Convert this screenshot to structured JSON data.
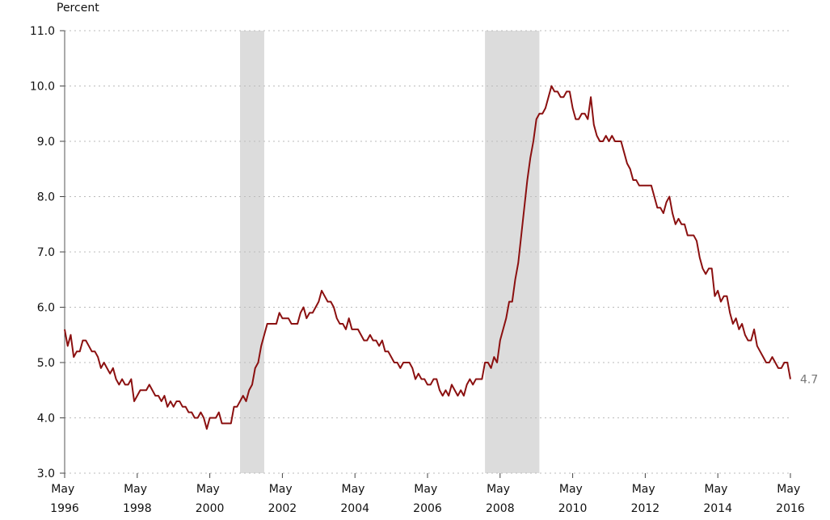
{
  "chart_data": {
    "type": "line",
    "y_label": "Percent",
    "x": [
      "1996-05",
      "1996-06",
      "1996-07",
      "1996-08",
      "1996-09",
      "1996-10",
      "1996-11",
      "1996-12",
      "1997-01",
      "1997-02",
      "1997-03",
      "1997-04",
      "1997-05",
      "1997-06",
      "1997-07",
      "1997-08",
      "1997-09",
      "1997-10",
      "1997-11",
      "1997-12",
      "1998-01",
      "1998-02",
      "1998-03",
      "1998-04",
      "1998-05",
      "1998-06",
      "1998-07",
      "1998-08",
      "1998-09",
      "1998-10",
      "1998-11",
      "1998-12",
      "1999-01",
      "1999-02",
      "1999-03",
      "1999-04",
      "1999-05",
      "1999-06",
      "1999-07",
      "1999-08",
      "1999-09",
      "1999-10",
      "1999-11",
      "1999-12",
      "2000-01",
      "2000-02",
      "2000-03",
      "2000-04",
      "2000-05",
      "2000-06",
      "2000-07",
      "2000-08",
      "2000-09",
      "2000-10",
      "2000-11",
      "2000-12",
      "2001-01",
      "2001-02",
      "2001-03",
      "2001-04",
      "2001-05",
      "2001-06",
      "2001-07",
      "2001-08",
      "2001-09",
      "2001-10",
      "2001-11",
      "2001-12",
      "2002-01",
      "2002-02",
      "2002-03",
      "2002-04",
      "2002-05",
      "2002-06",
      "2002-07",
      "2002-08",
      "2002-09",
      "2002-10",
      "2002-11",
      "2002-12",
      "2003-01",
      "2003-02",
      "2003-03",
      "2003-04",
      "2003-05",
      "2003-06",
      "2003-07",
      "2003-08",
      "2003-09",
      "2003-10",
      "2003-11",
      "2003-12",
      "2004-01",
      "2004-02",
      "2004-03",
      "2004-04",
      "2004-05",
      "2004-06",
      "2004-07",
      "2004-08",
      "2004-09",
      "2004-10",
      "2004-11",
      "2004-12",
      "2005-01",
      "2005-02",
      "2005-03",
      "2005-04",
      "2005-05",
      "2005-06",
      "2005-07",
      "2005-08",
      "2005-09",
      "2005-10",
      "2005-11",
      "2005-12",
      "2006-01",
      "2006-02",
      "2006-03",
      "2006-04",
      "2006-05",
      "2006-06",
      "2006-07",
      "2006-08",
      "2006-09",
      "2006-10",
      "2006-11",
      "2006-12",
      "2007-01",
      "2007-02",
      "2007-03",
      "2007-04",
      "2007-05",
      "2007-06",
      "2007-07",
      "2007-08",
      "2007-09",
      "2007-10",
      "2007-11",
      "2007-12",
      "2008-01",
      "2008-02",
      "2008-03",
      "2008-04",
      "2008-05",
      "2008-06",
      "2008-07",
      "2008-08",
      "2008-09",
      "2008-10",
      "2008-11",
      "2008-12",
      "2009-01",
      "2009-02",
      "2009-03",
      "2009-04",
      "2009-05",
      "2009-06",
      "2009-07",
      "2009-08",
      "2009-09",
      "2009-10",
      "2009-11",
      "2009-12",
      "2010-01",
      "2010-02",
      "2010-03",
      "2010-04",
      "2010-05",
      "2010-06",
      "2010-07",
      "2010-08",
      "2010-09",
      "2010-10",
      "2010-11",
      "2010-12",
      "2011-01",
      "2011-02",
      "2011-03",
      "2011-04",
      "2011-05",
      "2011-06",
      "2011-07",
      "2011-08",
      "2011-09",
      "2011-10",
      "2011-11",
      "2011-12",
      "2012-01",
      "2012-02",
      "2012-03",
      "2012-04",
      "2012-05",
      "2012-06",
      "2012-07",
      "2012-08",
      "2012-09",
      "2012-10",
      "2012-11",
      "2012-12",
      "2013-01",
      "2013-02",
      "2013-03",
      "2013-04",
      "2013-05",
      "2013-06",
      "2013-07",
      "2013-08",
      "2013-09",
      "2013-10",
      "2013-11",
      "2013-12",
      "2014-01",
      "2014-02",
      "2014-03",
      "2014-04",
      "2014-05",
      "2014-06",
      "2014-07",
      "2014-08",
      "2014-09",
      "2014-10",
      "2014-11",
      "2014-12",
      "2015-01",
      "2015-02",
      "2015-03",
      "2015-04",
      "2015-05",
      "2015-06",
      "2015-07",
      "2015-08",
      "2015-09",
      "2015-10",
      "2015-11",
      "2015-12",
      "2016-01",
      "2016-02",
      "2016-03",
      "2016-04",
      "2016-05"
    ],
    "series": [
      {
        "color": "#8b1010",
        "values": [
          5.6,
          5.3,
          5.5,
          5.1,
          5.2,
          5.2,
          5.4,
          5.4,
          5.3,
          5.2,
          5.2,
          5.1,
          4.9,
          5.0,
          4.9,
          4.8,
          4.9,
          4.7,
          4.6,
          4.7,
          4.6,
          4.6,
          4.7,
          4.3,
          4.4,
          4.5,
          4.5,
          4.5,
          4.6,
          4.5,
          4.4,
          4.4,
          4.3,
          4.4,
          4.2,
          4.3,
          4.2,
          4.3,
          4.3,
          4.2,
          4.2,
          4.1,
          4.1,
          4.0,
          4.0,
          4.1,
          4.0,
          3.8,
          4.0,
          4.0,
          4.0,
          4.1,
          3.9,
          3.9,
          3.9,
          3.9,
          4.2,
          4.2,
          4.3,
          4.4,
          4.3,
          4.5,
          4.6,
          4.9,
          5.0,
          5.3,
          5.5,
          5.7,
          5.7,
          5.7,
          5.7,
          5.9,
          5.8,
          5.8,
          5.8,
          5.7,
          5.7,
          5.7,
          5.9,
          6.0,
          5.8,
          5.9,
          5.9,
          6.0,
          6.1,
          6.3,
          6.2,
          6.1,
          6.1,
          6.0,
          5.8,
          5.7,
          5.7,
          5.6,
          5.8,
          5.6,
          5.6,
          5.6,
          5.5,
          5.4,
          5.4,
          5.5,
          5.4,
          5.4,
          5.3,
          5.4,
          5.2,
          5.2,
          5.1,
          5.0,
          5.0,
          4.9,
          5.0,
          5.0,
          5.0,
          4.9,
          4.7,
          4.8,
          4.7,
          4.7,
          4.6,
          4.6,
          4.7,
          4.7,
          4.5,
          4.4,
          4.5,
          4.4,
          4.6,
          4.5,
          4.4,
          4.5,
          4.4,
          4.6,
          4.7,
          4.6,
          4.7,
          4.7,
          4.7,
          5.0,
          5.0,
          4.9,
          5.1,
          5.0,
          5.4,
          5.6,
          5.8,
          6.1,
          6.1,
          6.5,
          6.8,
          7.3,
          7.8,
          8.3,
          8.7,
          9.0,
          9.4,
          9.5,
          9.5,
          9.6,
          9.8,
          10.0,
          9.9,
          9.9,
          9.8,
          9.8,
          9.9,
          9.9,
          9.6,
          9.4,
          9.4,
          9.5,
          9.5,
          9.4,
          9.8,
          9.3,
          9.1,
          9.0,
          9.0,
          9.1,
          9.0,
          9.1,
          9.0,
          9.0,
          9.0,
          8.8,
          8.6,
          8.5,
          8.3,
          8.3,
          8.2,
          8.2,
          8.2,
          8.2,
          8.2,
          8.0,
          7.8,
          7.8,
          7.7,
          7.9,
          8.0,
          7.7,
          7.5,
          7.6,
          7.5,
          7.5,
          7.3,
          7.3,
          7.3,
          7.2,
          6.9,
          6.7,
          6.6,
          6.7,
          6.7,
          6.2,
          6.3,
          6.1,
          6.2,
          6.2,
          5.9,
          5.7,
          5.8,
          5.6,
          5.7,
          5.5,
          5.4,
          5.4,
          5.6,
          5.3,
          5.2,
          5.1,
          5.0,
          5.0,
          5.1,
          5.0,
          4.9,
          4.9,
          5.0,
          5.0,
          4.7
        ]
      }
    ],
    "xlim": [
      "1996-05",
      "2016-05"
    ],
    "xticks": [
      {
        "value": "1996-05",
        "label": "May 1996"
      },
      {
        "value": "1998-05",
        "label": "May 1998"
      },
      {
        "value": "2000-05",
        "label": "May 2000"
      },
      {
        "value": "2002-05",
        "label": "May 2002"
      },
      {
        "value": "2004-05",
        "label": "May 2004"
      },
      {
        "value": "2006-05",
        "label": "May 2006"
      },
      {
        "value": "2008-05",
        "label": "May 2008"
      },
      {
        "value": "2010-05",
        "label": "May 2010"
      },
      {
        "value": "2012-05",
        "label": "May 2012"
      },
      {
        "value": "2014-05",
        "label": "May 2014"
      },
      {
        "value": "2016-05",
        "label": "May 2016"
      }
    ],
    "ylim": [
      3,
      11
    ],
    "yticks": [
      {
        "value": 3,
        "label": "3.0"
      },
      {
        "value": 4,
        "label": "4.0"
      },
      {
        "value": 5,
        "label": "5.0"
      },
      {
        "value": 6,
        "label": "6.0"
      },
      {
        "value": 7,
        "label": "7.0"
      },
      {
        "value": 8,
        "label": "8.0"
      },
      {
        "value": 9,
        "label": "9.0"
      },
      {
        "value": 10,
        "label": "10.0"
      },
      {
        "value": 11,
        "label": "11.0"
      }
    ],
    "grid": true,
    "shaded_periods": [
      {
        "start": "2001-03",
        "end": "2001-11"
      },
      {
        "start": "2007-12",
        "end": "2009-06"
      }
    ],
    "shade_color": "#dcdcdc"
  }
}
